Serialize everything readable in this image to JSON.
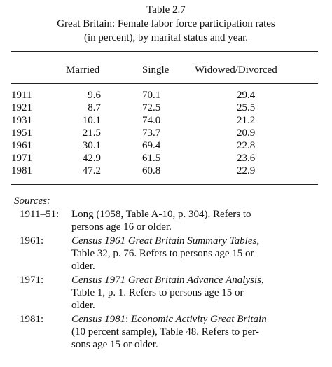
{
  "table": {
    "number": "Table 2.7",
    "title_line1": "Great Britain: Female labor force participation rates",
    "title_line2": "(in percent), by marital status and year.",
    "columns": [
      "Married",
      "Single",
      "Widowed/Divorced"
    ],
    "rows": [
      {
        "year": "1911",
        "married": "9.6",
        "single": "70.1",
        "widowed": "29.4"
      },
      {
        "year": "1921",
        "married": "8.7",
        "single": "72.5",
        "widowed": "25.5"
      },
      {
        "year": "1931",
        "married": "10.1",
        "single": "74.0",
        "widowed": "21.2"
      },
      {
        "year": "1951",
        "married": "21.5",
        "single": "73.7",
        "widowed": "20.9"
      },
      {
        "year": "1961",
        "married": "30.1",
        "single": "69.4",
        "widowed": "22.8"
      },
      {
        "year": "1971",
        "married": "42.9",
        "single": "61.5",
        "widowed": "23.6"
      },
      {
        "year": "1981",
        "married": "47.2",
        "single": "60.8",
        "widowed": "22.9"
      }
    ]
  },
  "sources": {
    "heading": "Sources:",
    "entries": [
      {
        "label": "1911–51:",
        "line1": "Long (1958, Table A-10, p. 304). Refers to",
        "line2": "persons age 16 or older."
      },
      {
        "label": "1961:",
        "line1_italic": "Census 1961 Great Britain Summary Tables",
        "line1_tail": ",",
        "line2": "Table 32, p. 76. Refers to persons age 15 or",
        "line3": "older."
      },
      {
        "label": "1971:",
        "line1_italic": "Census 1971 Great Britain Advance Analysis",
        "line1_tail": ",",
        "line2": "Table 1, p. 1. Refers to persons age 15 or",
        "line3": "older."
      },
      {
        "label": "1981:",
        "line1_italic": "Census 1981",
        "line1_mid": ": ",
        "line1_italic2": "Economic Activity Great Britain",
        "line2": "(10 percent sample), Table 48. Refers to per-",
        "line3": "sons age 15 or older."
      }
    ]
  }
}
